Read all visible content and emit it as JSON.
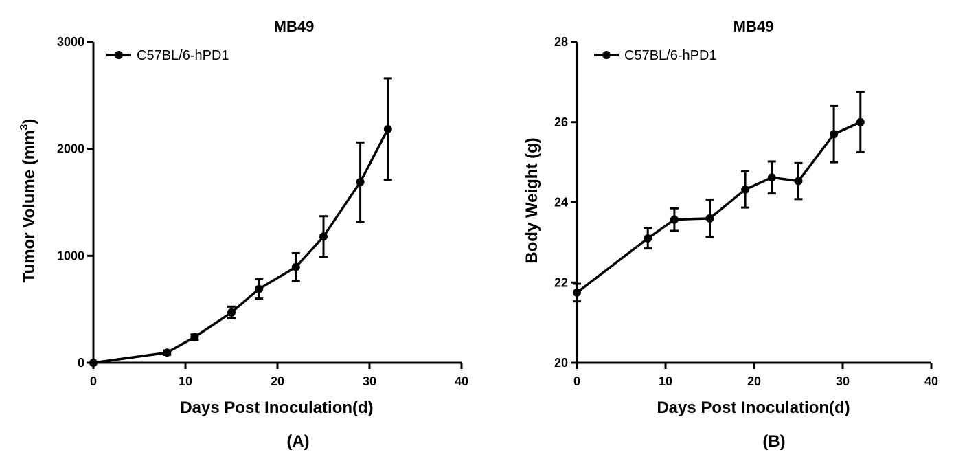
{
  "chart_data": [
    {
      "type": "line",
      "title": "MB49",
      "xlabel": "Days Post Inoculation(d)",
      "ylabel": "Tumor Volume (mm",
      "ylabel_sup": "3",
      "ylabel_end": ")",
      "panel_label": "(A)",
      "xlim": [
        0,
        40
      ],
      "ylim": [
        0,
        3000
      ],
      "xticks": [
        0,
        10,
        20,
        30,
        40
      ],
      "yticks": [
        0,
        1000,
        2000,
        3000
      ],
      "legend_position": "top-left",
      "series": [
        {
          "name": "C57BL/6-hPD1",
          "x": [
            0,
            8,
            11,
            15,
            18,
            22,
            25,
            29,
            32
          ],
          "y": [
            0,
            95,
            240,
            470,
            690,
            895,
            1180,
            1690,
            2185
          ],
          "error": [
            0,
            20,
            25,
            55,
            90,
            130,
            190,
            370,
            475
          ]
        }
      ]
    },
    {
      "type": "line",
      "title": "MB49",
      "xlabel": "Days Post Inoculation(d)",
      "ylabel": "Body Weight (g)",
      "ylabel_sup": "",
      "ylabel_end": "",
      "panel_label": "(B)",
      "xlim": [
        0,
        40
      ],
      "ylim": [
        20,
        28
      ],
      "xticks": [
        0,
        10,
        20,
        30,
        40
      ],
      "yticks": [
        20,
        22,
        24,
        26,
        28
      ],
      "legend_position": "top-left",
      "series": [
        {
          "name": "C57BL/6-hPD1",
          "x": [
            0,
            8,
            11,
            15,
            19,
            22,
            25,
            29,
            32
          ],
          "y": [
            21.75,
            23.1,
            23.57,
            23.6,
            24.32,
            24.62,
            24.53,
            25.7,
            26.0
          ],
          "error": [
            0.22,
            0.25,
            0.28,
            0.47,
            0.45,
            0.4,
            0.45,
            0.7,
            0.75
          ]
        }
      ]
    }
  ]
}
